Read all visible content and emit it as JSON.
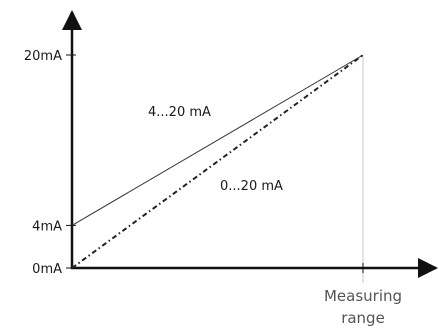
{
  "chart_data": {
    "type": "line",
    "title": "",
    "xlabel": "Measuring range",
    "xlabel_lines": [
      "Measuring",
      "range"
    ],
    "ylabel": "",
    "x": [
      0,
      100
    ],
    "xlim": [
      0,
      100
    ],
    "ylim": [
      0,
      20
    ],
    "yticks": [
      0,
      4,
      20
    ],
    "ytick_labels": [
      "0mA",
      "4mA",
      "20mA"
    ],
    "grid": false,
    "series": [
      {
        "name": "4...20 mA",
        "x": [
          0,
          100
        ],
        "values": [
          4,
          20
        ],
        "style": "solid",
        "color": "#333333"
      },
      {
        "name": "0...20 mA",
        "x": [
          0,
          100
        ],
        "values": [
          0,
          20
        ],
        "style": "dash-dot",
        "color": "#222222"
      }
    ]
  }
}
